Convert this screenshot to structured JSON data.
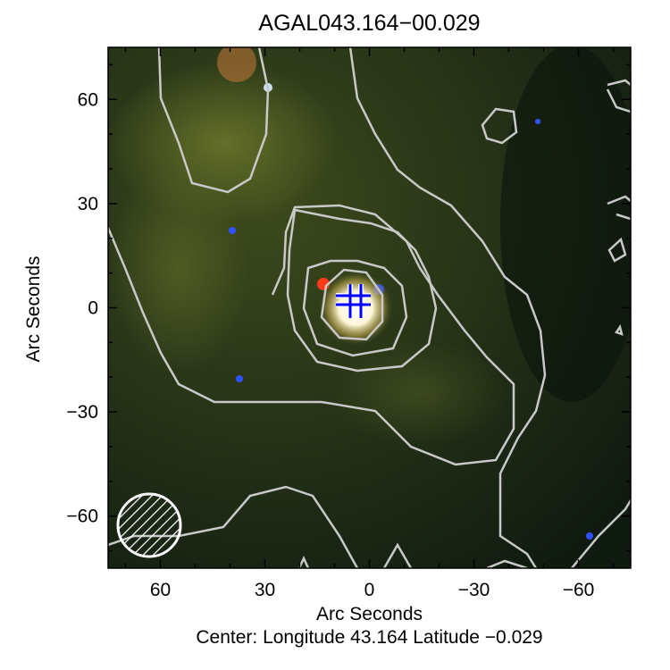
{
  "chart_data": {
    "type": "image",
    "title": "AGAL043.164−00.029",
    "xlabel": "Arc Seconds",
    "ylabel": "Arc Seconds",
    "caption": "Center:  Longitude 43.164 Latitude −0.029",
    "xlim": [
      75,
      -75
    ],
    "ylim": [
      -75,
      75
    ],
    "x_ticks": [
      60,
      30,
      0,
      -30,
      -60
    ],
    "x_tick_labels": [
      "60",
      "30",
      "0",
      "−30",
      "−60"
    ],
    "y_ticks": [
      60,
      30,
      0,
      -30,
      -60
    ],
    "y_tick_labels": [
      "60",
      "30",
      "0",
      "−30",
      "−60"
    ],
    "marker": {
      "type": "cross",
      "x": -4,
      "y": 2,
      "color": "#0000ff"
    },
    "beam": {
      "x": 62,
      "y": -62,
      "style": "hatched circle",
      "color": "#ffffff"
    },
    "contour_color": "#c8c8c8",
    "background": "three-color infrared composite"
  }
}
